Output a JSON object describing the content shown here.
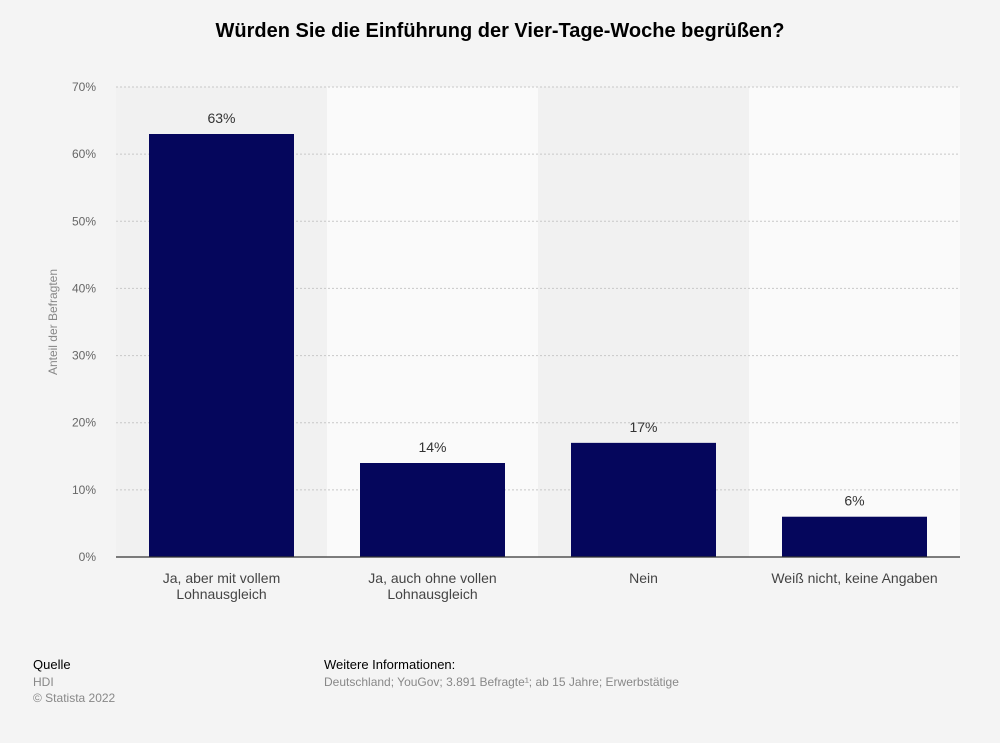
{
  "chart_data": {
    "type": "bar",
    "title": "Würden Sie die Einführung der Vier-Tage-Woche begrüßen?",
    "categories": [
      [
        "Ja, aber mit vollem",
        "Lohnausgleich"
      ],
      [
        "Ja, auch ohne vollen",
        "Lohnausgleich"
      ],
      [
        "Nein"
      ],
      [
        "Weiß nicht, keine Angaben"
      ]
    ],
    "values": [
      63,
      14,
      17,
      6
    ],
    "data_labels": [
      "63%",
      "14%",
      "17%",
      "6%"
    ],
    "ylabel": "Anteil der Befragten",
    "ylim": [
      0,
      70
    ],
    "y_ticks": [
      0,
      10,
      20,
      30,
      40,
      50,
      60,
      70
    ],
    "y_tick_labels": [
      "0%",
      "10%",
      "20%",
      "30%",
      "40%",
      "50%",
      "60%",
      "70%"
    ],
    "grid": true,
    "bar_color": "#05065c"
  },
  "footer": {
    "source_heading": "Quelle",
    "source_lines": [
      "HDI",
      "© Statista 2022"
    ],
    "info_heading": "Weitere Informationen:",
    "info_line": "Deutschland; YouGov; 3.891 Befragte¹; ab 15 Jahre; Erwerbstätige"
  }
}
